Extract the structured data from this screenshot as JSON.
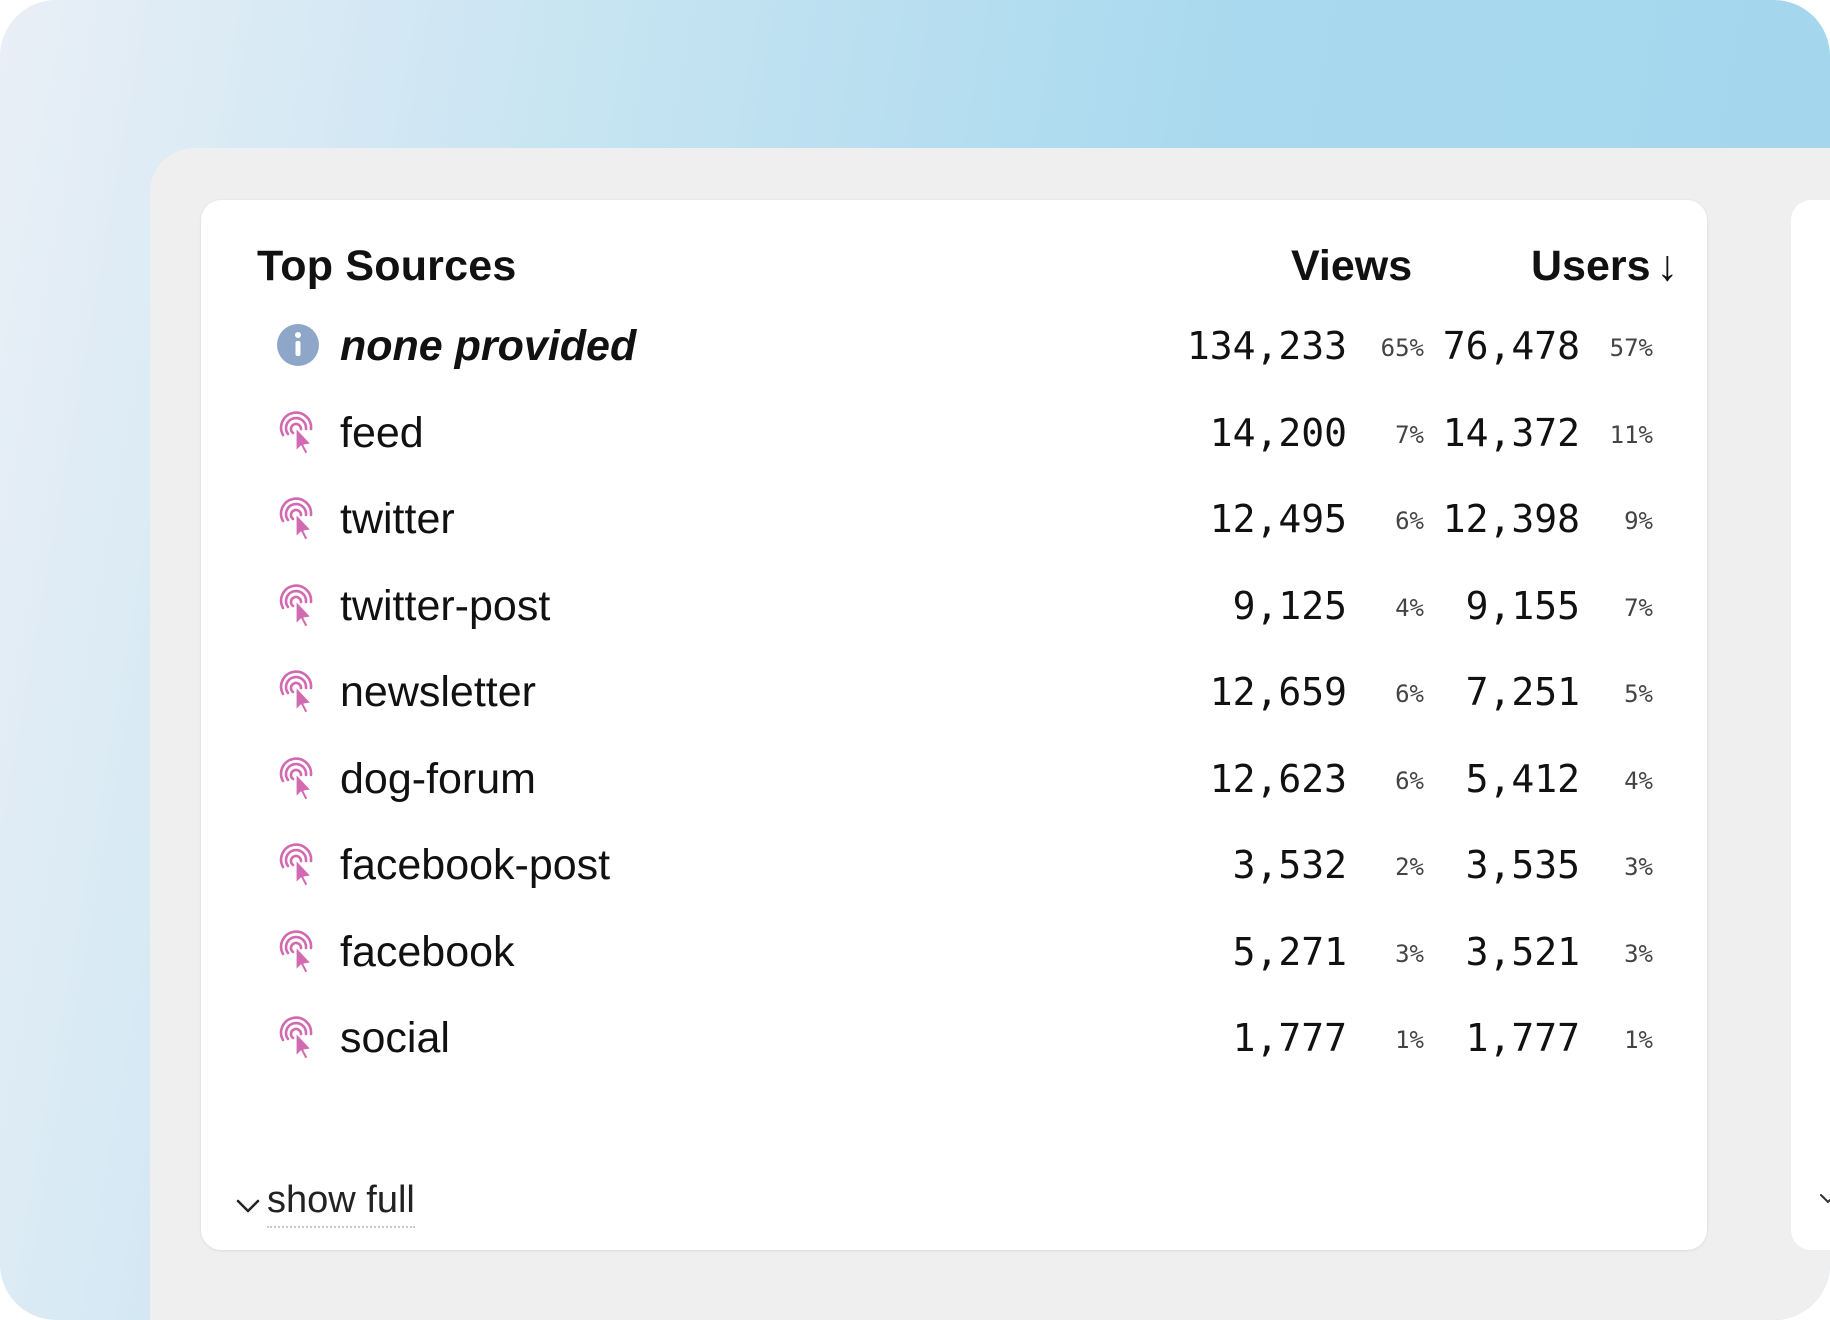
{
  "card": {
    "title": "Top Sources",
    "columns": {
      "views": "Views",
      "users": "Users",
      "sort_indicator": "↓"
    },
    "rows": [
      {
        "label": "none provided",
        "icon": "info-icon",
        "views": "134,233",
        "views_pct": "65%",
        "users": "76,478",
        "users_pct": "57%"
      },
      {
        "label": "feed",
        "icon": "signal-click-icon",
        "views": "14,200",
        "views_pct": "7%",
        "users": "14,372",
        "users_pct": "11%"
      },
      {
        "label": "twitter",
        "icon": "signal-click-icon",
        "views": "12,495",
        "views_pct": "6%",
        "users": "12,398",
        "users_pct": "9%"
      },
      {
        "label": "twitter-post",
        "icon": "signal-click-icon",
        "views": "9,125",
        "views_pct": "4%",
        "users": "9,155",
        "users_pct": "7%"
      },
      {
        "label": "newsletter",
        "icon": "signal-click-icon",
        "views": "12,659",
        "views_pct": "6%",
        "users": "7,251",
        "users_pct": "5%"
      },
      {
        "label": "dog-forum",
        "icon": "signal-click-icon",
        "views": "12,623",
        "views_pct": "6%",
        "users": "5,412",
        "users_pct": "4%"
      },
      {
        "label": "facebook-post",
        "icon": "signal-click-icon",
        "views": "3,532",
        "views_pct": "2%",
        "users": "3,535",
        "users_pct": "3%"
      },
      {
        "label": "facebook",
        "icon": "signal-click-icon",
        "views": "5,271",
        "views_pct": "3%",
        "users": "3,521",
        "users_pct": "3%"
      },
      {
        "label": "social",
        "icon": "signal-click-icon",
        "views": "1,777",
        "views_pct": "1%",
        "users": "1,777",
        "users_pct": "1%"
      }
    ],
    "footer": {
      "show_full_label": "show full"
    }
  },
  "colors": {
    "info_icon": "#8ea6c8",
    "source_icon": "#d16ab0",
    "background_gradient_start": "#e9eff6",
    "background_gradient_end": "#a2d6ee",
    "panel": "#efefef",
    "card": "#ffffff"
  }
}
